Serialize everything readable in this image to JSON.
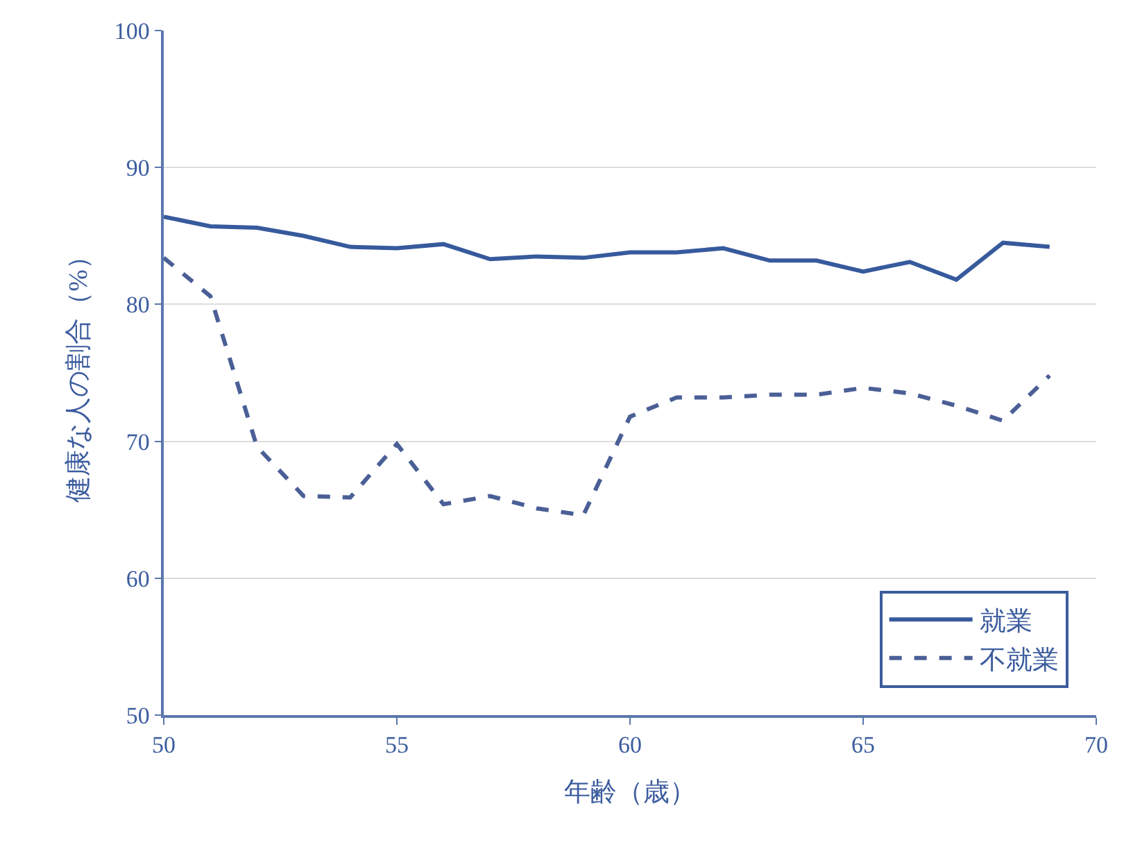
{
  "chart_data": {
    "type": "line",
    "xlabel": "年齢（歳）",
    "ylabel": "健康な人の割合（%）",
    "x": [
      50,
      51,
      52,
      53,
      54,
      55,
      56,
      57,
      58,
      59,
      60,
      61,
      62,
      63,
      64,
      65,
      66,
      67,
      68,
      69
    ],
    "series": [
      {
        "name": "就業",
        "color": "#365a9c",
        "line_style": "solid",
        "values": [
          86.4,
          85.7,
          85.6,
          85.0,
          84.2,
          84.1,
          84.4,
          83.3,
          83.5,
          83.4,
          83.8,
          83.8,
          84.1,
          83.2,
          83.2,
          82.4,
          83.1,
          81.8,
          84.5,
          84.2
        ]
      },
      {
        "name": "不就業",
        "color": "#4a5f96",
        "line_style": "dashed",
        "values": [
          83.4,
          80.6,
          69.6,
          66.0,
          65.9,
          69.8,
          65.4,
          66.0,
          65.1,
          64.6,
          71.8,
          73.2,
          73.2,
          73.4,
          73.4,
          73.9,
          73.5,
          72.6,
          71.5,
          74.8
        ]
      }
    ],
    "xlim": [
      50,
      70
    ],
    "xticks": [
      50,
      55,
      60,
      65,
      70
    ],
    "ylim": [
      50,
      100
    ],
    "yticks": [
      50,
      60,
      70,
      80,
      90,
      100
    ],
    "grid": "y",
    "legend": "bottom right",
    "marker": "none"
  }
}
